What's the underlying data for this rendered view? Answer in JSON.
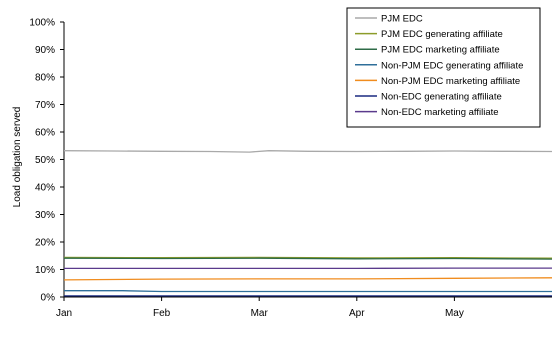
{
  "chart_data": {
    "type": "line",
    "title": "",
    "xlabel": "",
    "ylabel": "Load obligation served",
    "x_ticks": [
      "Jan",
      "Feb",
      "Mar",
      "Apr",
      "May"
    ],
    "y_ticks": [
      "0%",
      "10%",
      "20%",
      "30%",
      "40%",
      "50%",
      "60%",
      "70%",
      "80%",
      "90%",
      "100%"
    ],
    "ylim": [
      0,
      100
    ],
    "xlim": [
      0,
      5
    ],
    "grid": false,
    "legend_position": "top-right",
    "series": [
      {
        "name": "PJM EDC",
        "color": "#a9a9a9",
        "x": [
          0,
          0.5,
          1,
          1.5,
          1.9,
          2.1,
          2.5,
          3,
          3.5,
          4,
          4.5,
          5
        ],
        "values": [
          53.2,
          53.1,
          53.0,
          52.9,
          52.7,
          53.2,
          53.0,
          52.9,
          53.0,
          53.1,
          53.0,
          52.9
        ]
      },
      {
        "name": "PJM EDC generating affiliate",
        "color": "#8c9c2a",
        "x": [
          0,
          1,
          2,
          3,
          4,
          5
        ],
        "values": [
          14.4,
          14.3,
          14.4,
          14.2,
          14.3,
          14.1
        ]
      },
      {
        "name": "PJM EDC marketing affiliate",
        "color": "#2e6b47",
        "x": [
          0,
          1,
          2,
          3,
          4,
          5
        ],
        "values": [
          14.1,
          14.0,
          14.1,
          13.9,
          14.0,
          13.8
        ]
      },
      {
        "name": "Non-PJM EDC generating affiliate",
        "color": "#2f6f9a",
        "x": [
          0,
          0.6,
          1,
          2,
          3,
          4,
          5
        ],
        "values": [
          2.3,
          2.3,
          2.0,
          2.0,
          2.0,
          2.0,
          2.0
        ]
      },
      {
        "name": "Non-PJM EDC marketing affiliate",
        "color": "#f08c1e",
        "x": [
          0,
          1,
          2,
          3,
          4,
          5
        ],
        "values": [
          6.2,
          6.5,
          6.6,
          6.6,
          6.8,
          7.0
        ]
      },
      {
        "name": "Non-EDC generating affiliate",
        "color": "#1a2a80",
        "x": [
          0,
          1,
          2,
          3,
          4,
          5
        ],
        "values": [
          0.4,
          0.4,
          0.4,
          0.4,
          0.4,
          0.4
        ]
      },
      {
        "name": "Non-EDC marketing affiliate",
        "color": "#5a3a8c",
        "x": [
          0,
          1,
          2,
          3,
          4,
          5
        ],
        "values": [
          10.4,
          10.4,
          10.4,
          10.4,
          10.5,
          10.5
        ]
      }
    ]
  }
}
